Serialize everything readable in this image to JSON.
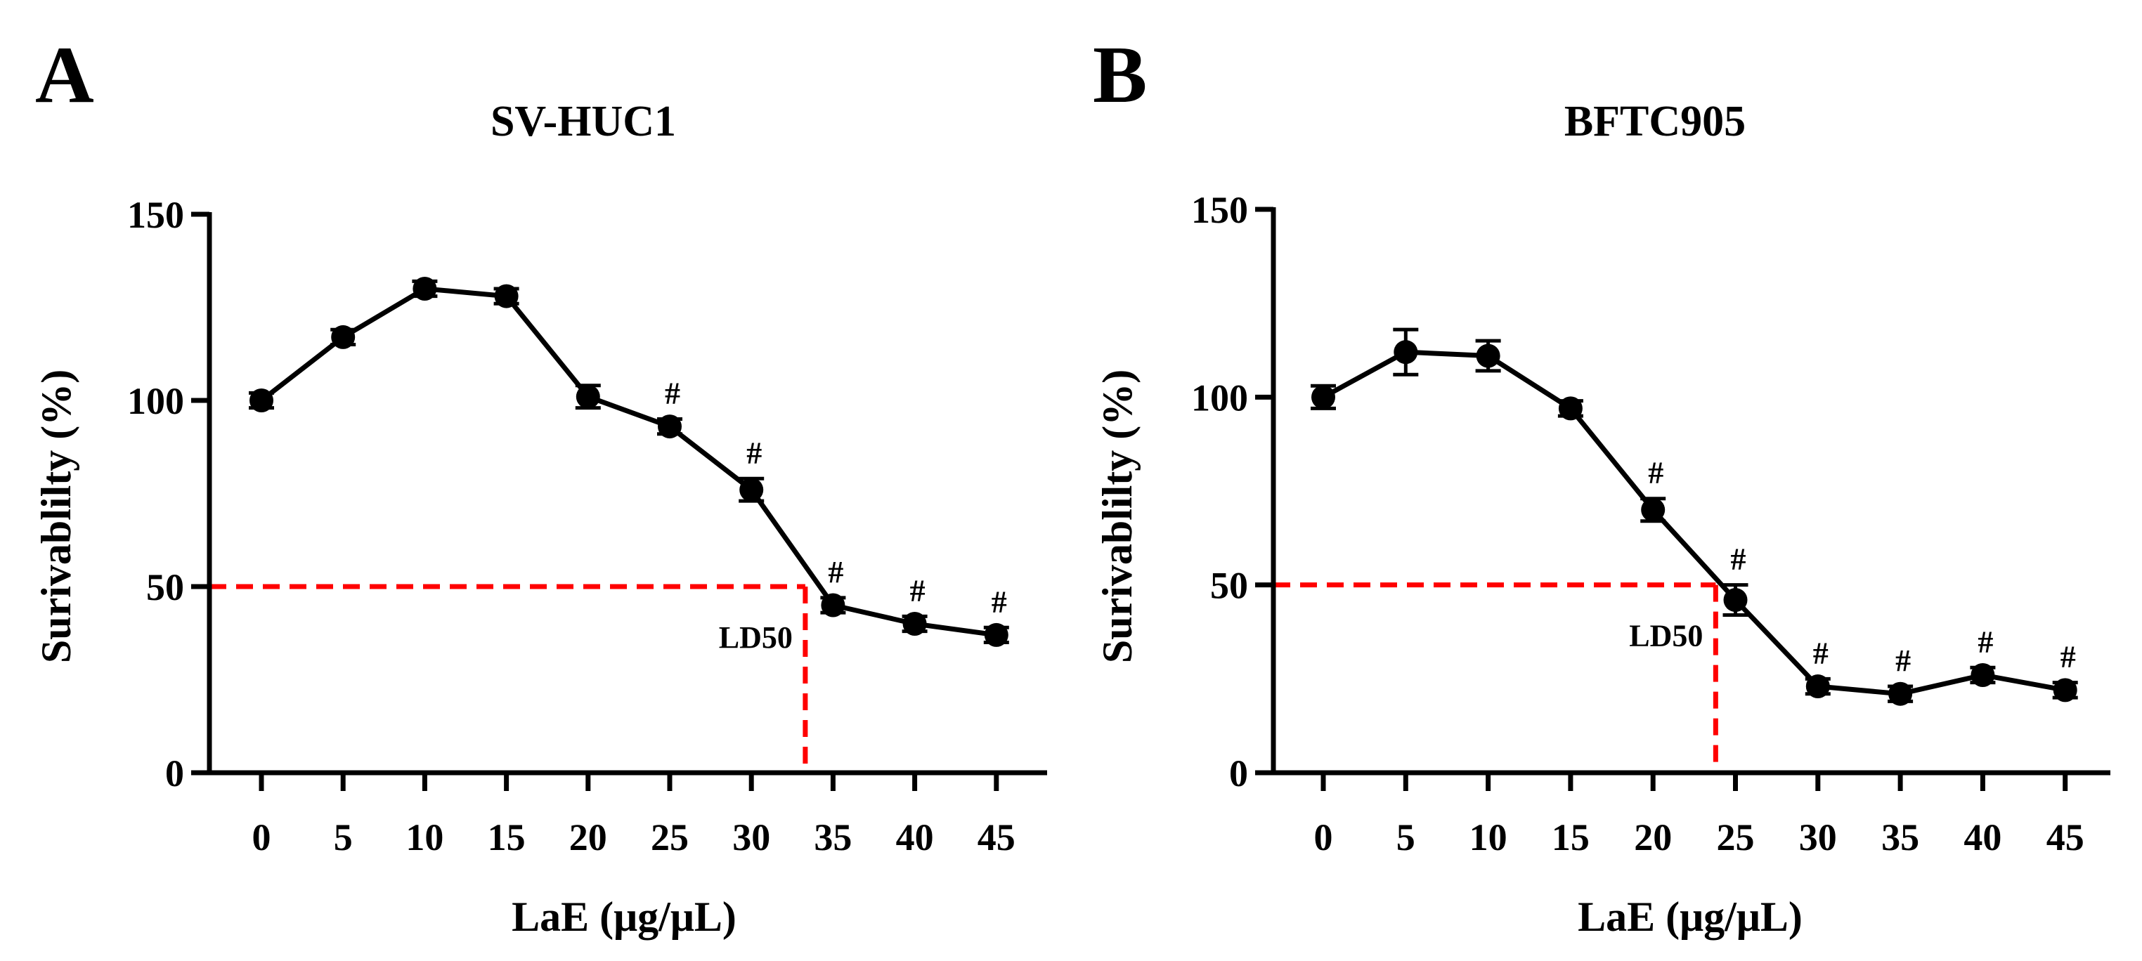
{
  "chart_data": [
    {
      "type": "line",
      "panel_label": "A",
      "title": "SV-HUC1",
      "xlabel": "LaE (μg/μL)",
      "ylabel": "Surivablilty (%)",
      "categories": [
        "0",
        "5",
        "10",
        "15",
        "20",
        "25",
        "30",
        "35",
        "40",
        "45"
      ],
      "x": [
        0,
        5,
        10,
        15,
        20,
        25,
        30,
        35,
        40,
        45
      ],
      "y": [
        100,
        117,
        130,
        128,
        101,
        93,
        76,
        45,
        40,
        37
      ],
      "error": [
        2,
        2,
        2,
        2,
        3,
        2,
        3,
        2,
        2,
        2
      ],
      "significance": [
        "",
        "",
        "",
        "",
        "",
        "#",
        "#",
        "#",
        "#",
        "#"
      ],
      "yticks": [
        "0",
        "50",
        "100",
        "150"
      ],
      "ylim": [
        0,
        150
      ],
      "ld50": {
        "label": "LD50",
        "x": 33.3,
        "y": 50
      }
    },
    {
      "type": "line",
      "panel_label": "B",
      "title": "BFTC905",
      "xlabel": "LaE (μg/μL)",
      "ylabel": "Surivablilty (%)",
      "categories": [
        "0",
        "5",
        "10",
        "15",
        "20",
        "25",
        "30",
        "35",
        "40",
        "45"
      ],
      "x": [
        0,
        5,
        10,
        15,
        20,
        25,
        30,
        35,
        40,
        45
      ],
      "y": [
        100,
        112,
        111,
        97,
        70,
        46,
        23,
        21,
        26,
        22
      ],
      "error": [
        3,
        6,
        4,
        2,
        3,
        4,
        2,
        2,
        2,
        2
      ],
      "significance": [
        "",
        "",
        "",
        "",
        "#",
        "#",
        "#",
        "#",
        "#",
        "#"
      ],
      "yticks": [
        "0",
        "50",
        "100",
        "150"
      ],
      "ylim": [
        0,
        150
      ],
      "ld50": {
        "label": "LD50",
        "x": 23.8,
        "y": 50
      }
    }
  ],
  "style": {
    "line_color": "#000000",
    "ld50_color": "#ff0000"
  }
}
